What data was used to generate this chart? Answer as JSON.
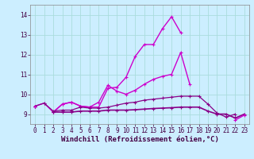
{
  "xlabel": "Windchill (Refroidissement éolien,°C)",
  "bg_color": "#cceeff",
  "grid_color": "#aadddd",
  "line_color1": "#cc00cc",
  "line_color2": "#880088",
  "x": [
    0,
    1,
    2,
    3,
    4,
    5,
    6,
    7,
    8,
    9,
    10,
    11,
    12,
    13,
    14,
    15,
    16,
    17,
    18,
    19,
    20,
    21,
    22,
    23
  ],
  "s1": [
    9.4,
    9.55,
    9.1,
    9.5,
    9.6,
    9.4,
    9.35,
    9.35,
    10.3,
    10.35,
    10.85,
    11.9,
    12.5,
    12.5,
    13.3,
    13.9,
    13.1,
    null,
    null,
    null,
    null,
    null,
    null,
    null
  ],
  "s2": [
    9.4,
    null,
    9.1,
    9.5,
    9.6,
    9.4,
    9.35,
    9.6,
    10.45,
    10.15,
    10.0,
    10.2,
    10.5,
    10.75,
    10.9,
    11.0,
    12.1,
    10.5,
    null,
    null,
    null,
    null,
    null,
    null
  ],
  "s3": [
    9.4,
    9.55,
    9.15,
    9.2,
    9.2,
    9.35,
    9.3,
    9.3,
    9.35,
    9.45,
    9.55,
    9.6,
    9.7,
    9.75,
    9.8,
    9.85,
    9.9,
    9.9,
    9.9,
    9.5,
    9.05,
    8.85,
    9.0,
    null
  ],
  "s4": [
    9.4,
    null,
    9.1,
    9.1,
    9.1,
    9.15,
    9.15,
    9.15,
    9.2,
    9.2,
    9.2,
    9.22,
    9.25,
    9.28,
    9.3,
    9.32,
    9.35,
    9.35,
    9.35,
    9.15,
    9.0,
    9.0,
    8.8,
    9.0
  ],
  "s5": [
    9.4,
    null,
    null,
    null,
    null,
    null,
    null,
    null,
    null,
    null,
    null,
    null,
    null,
    null,
    null,
    null,
    null,
    null,
    null,
    null,
    null,
    null,
    8.7,
    8.95
  ],
  "xlim": [
    -0.5,
    23.5
  ],
  "ylim": [
    8.5,
    14.5
  ],
  "yticks": [
    9,
    10,
    11,
    12,
    13,
    14
  ],
  "xticks": [
    0,
    1,
    2,
    3,
    4,
    5,
    6,
    7,
    8,
    9,
    10,
    11,
    12,
    13,
    14,
    15,
    16,
    17,
    18,
    19,
    20,
    21,
    22,
    23
  ],
  "tick_fontsize": 5.5,
  "xlabel_fontsize": 6.5,
  "figsize": [
    3.2,
    2.0
  ],
  "dpi": 100
}
